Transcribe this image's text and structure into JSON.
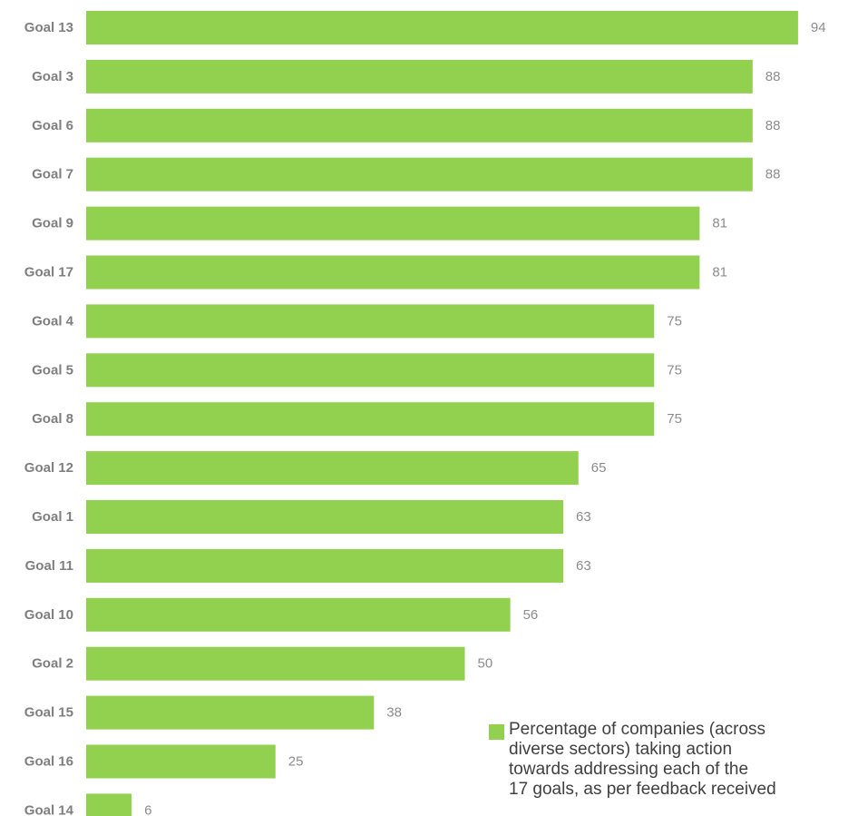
{
  "chart_data": {
    "type": "bar",
    "orientation": "horizontal",
    "categories": [
      "Goal 13",
      "Goal 3",
      "Goal 6",
      "Goal 7",
      "Goal 9",
      "Goal 17",
      "Goal 4",
      "Goal 5",
      "Goal 8",
      "Goal 12",
      "Goal 1",
      "Goal 11",
      "Goal 10",
      "Goal 2",
      "Goal 15",
      "Goal 16",
      "Goal 14"
    ],
    "series": [
      {
        "name": "Percentage of companies (across diverse sectors) taking action towards addressing each of the 17 goals, as per feedback received",
        "values": [
          94,
          88,
          88,
          88,
          81,
          81,
          75,
          75,
          75,
          65,
          63,
          63,
          56,
          50,
          38,
          25,
          6
        ]
      }
    ],
    "xlim": [
      0,
      100
    ],
    "grid": false,
    "legend": "bottom-right",
    "bar_color": "#92d050"
  },
  "legend_text": "Percentage of companies (across\ndiverse sectors) taking action\ntowards addressing each of the\n17 goals, as per feedback received"
}
